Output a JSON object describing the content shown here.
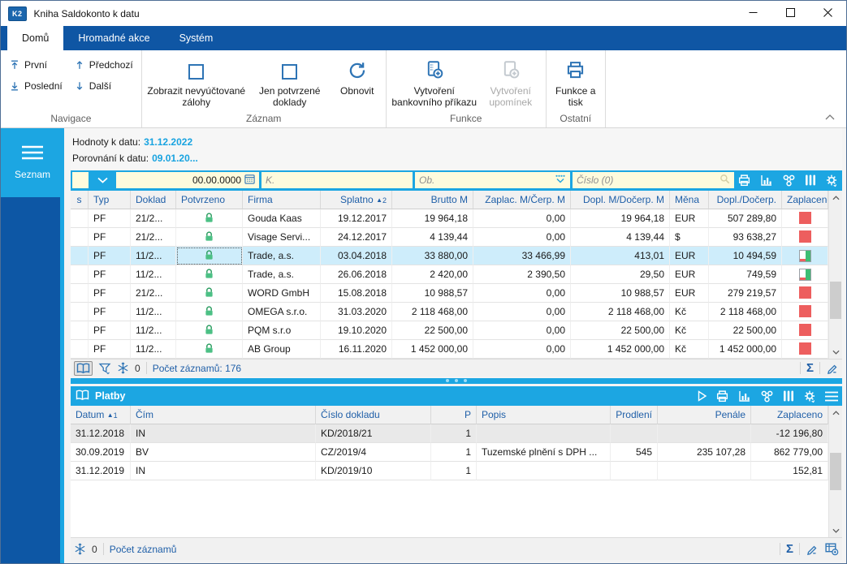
{
  "window": {
    "title": "Kniha Saldokonto k datu",
    "logo": "K2"
  },
  "ribbon": {
    "tabs": [
      {
        "label": "Domů",
        "active": true
      },
      {
        "label": "Hromadné akce",
        "active": false
      },
      {
        "label": "Systém",
        "active": false
      }
    ],
    "nav": [
      {
        "label": "První"
      },
      {
        "label": "Poslední"
      },
      {
        "label": "Předchozí"
      },
      {
        "label": "Další"
      }
    ],
    "zaznam": {
      "show_advances": "Zobrazit nevyúčtované zálohy",
      "only_confirmed": "Jen potvrzené doklady",
      "refresh": "Obnovit"
    },
    "funkce": {
      "bank_order": "Vytvoření bankovního příkazu",
      "reminders": "Vytvoření upomínek"
    },
    "ostatni": {
      "print": "Funkce a tisk"
    },
    "group_labels": [
      "Navigace",
      "Záznam",
      "Funkce",
      "Ostatní"
    ]
  },
  "sidebar": {
    "label": "Seznam"
  },
  "info": {
    "values_label": "Hodnoty k datu:",
    "values_date": "31.12.2022",
    "compare_label": "Porovnání k datu:",
    "compare_date": "09.01.20..."
  },
  "filter": {
    "date_value": "00.00.0000",
    "k_placeholder": "K.",
    "ob_placeholder": "Ob.",
    "cislo_placeholder": "Číslo (0)"
  },
  "main_table": {
    "columns": [
      "s",
      "Typ",
      "Doklad",
      "Potvrzeno",
      "Firma",
      "Splatno",
      "Brutto M",
      "Zaplac. M/Čerp. M",
      "Dopl. M/Dočerp. M",
      "Měna",
      "Dopl./Dočerp.",
      "Zaplaceno"
    ],
    "sort_badge": "2",
    "rows": [
      {
        "typ": "PF",
        "doklad": "21/2...",
        "firma": "Gouda Kaas",
        "splatno": "19.12.2017",
        "brutto": "19 964,18",
        "zaplac": "0,00",
        "dopl": "19 964,18",
        "mena": "EUR",
        "doplcerp": "507 289,80",
        "status": "red",
        "selected": false
      },
      {
        "typ": "PF",
        "doklad": "21/2...",
        "firma": "Visage Servi...",
        "splatno": "24.12.2017",
        "brutto": "4 139,44",
        "zaplac": "0,00",
        "dopl": "4 139,44",
        "mena": "$",
        "doplcerp": "93 638,27",
        "status": "red",
        "selected": false
      },
      {
        "typ": "PF",
        "doklad": "11/2...",
        "firma": "Trade, a.s.",
        "splatno": "03.04.2018",
        "brutto": "33 880,00",
        "zaplac": "33 466,99",
        "dopl": "413,01",
        "mena": "EUR",
        "doplcerp": "10 494,59",
        "status": "partial",
        "selected": true
      },
      {
        "typ": "PF",
        "doklad": "11/2...",
        "firma": "Trade, a.s.",
        "splatno": "26.06.2018",
        "brutto": "2 420,00",
        "zaplac": "2 390,50",
        "dopl": "29,50",
        "mena": "EUR",
        "doplcerp": "749,59",
        "status": "partial",
        "selected": false
      },
      {
        "typ": "PF",
        "doklad": "21/2...",
        "firma": "WORD GmbH",
        "splatno": "15.08.2018",
        "brutto": "10 988,57",
        "zaplac": "0,00",
        "dopl": "10 988,57",
        "mena": "EUR",
        "doplcerp": "279 219,57",
        "status": "red",
        "selected": false
      },
      {
        "typ": "PF",
        "doklad": "11/2...",
        "firma": "OMEGA s.r.o.",
        "splatno": "31.03.2020",
        "brutto": "2 118 468,00",
        "zaplac": "0,00",
        "dopl": "2 118 468,00",
        "mena": "Kč",
        "doplcerp": "2 118 468,00",
        "status": "red",
        "selected": false
      },
      {
        "typ": "PF",
        "doklad": "11/2...",
        "firma": "PQM s.r.o",
        "splatno": "19.10.2020",
        "brutto": "22 500,00",
        "zaplac": "0,00",
        "dopl": "22 500,00",
        "mena": "Kč",
        "doplcerp": "22 500,00",
        "status": "red",
        "selected": false
      },
      {
        "typ": "PF",
        "doklad": "11/2...",
        "firma": "AB Group",
        "splatno": "16.11.2020",
        "brutto": "1 452 000,00",
        "zaplac": "0,00",
        "dopl": "1 452 000,00",
        "mena": "Kč",
        "doplcerp": "1 452 000,00",
        "status": "red",
        "selected": false
      }
    ]
  },
  "main_status": {
    "frozen": "0",
    "count": "Počet záznamů: 176"
  },
  "platby": {
    "title": "Platby",
    "columns": [
      "Datum",
      "Čím",
      "Číslo dokladu",
      "P",
      "Popis",
      "Prodlení",
      "Penále",
      "Zaplaceno"
    ],
    "sort_badge": "1",
    "rows": [
      {
        "datum": "31.12.2018",
        "cim": "IN",
        "cislo": "KD/2018/21",
        "p": "1",
        "popis": "",
        "prodleni": "",
        "penale": "",
        "zaplaceno": "-12 196,80",
        "shaded": true
      },
      {
        "datum": "30.09.2019",
        "cim": "BV",
        "cislo": "CZ/2019/4",
        "p": "1",
        "popis": "Tuzemské plnění s DPH ...",
        "prodleni": "545",
        "penale": "235 107,28",
        "zaplaceno": "862 779,00",
        "shaded": false
      },
      {
        "datum": "31.12.2019",
        "cim": "IN",
        "cislo": "KD/2019/10",
        "p": "1",
        "popis": "",
        "prodleni": "",
        "penale": "",
        "zaplaceno": "152,81",
        "shaded": false
      }
    ]
  },
  "platby_status": {
    "frozen": "0",
    "count": "Počet záznamů"
  },
  "glyphs": {
    "sum": "Σ",
    "sort_asc": "▲"
  },
  "colors": {
    "navy": "#0f56a4",
    "cyan": "#1ca6e2",
    "red": "#ed5e5e",
    "green": "#3dbd73",
    "selected_row": "#ceedfb",
    "field_yellow": "#fefbdd"
  }
}
